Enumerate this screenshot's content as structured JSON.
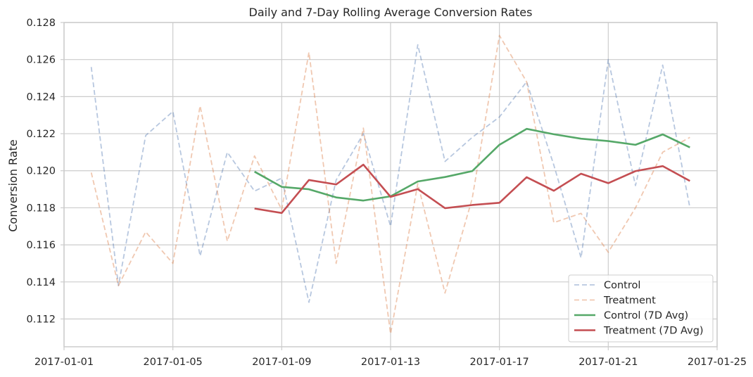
{
  "chart_data": {
    "type": "line",
    "title": "Daily and 7-Day Rolling Average Conversion Rates",
    "xlabel": "",
    "ylabel": "Conversion Rate",
    "grid": true,
    "legend_position": "lower-right",
    "xlim": [
      "2017-01-01",
      "2017-01-25"
    ],
    "ylim": [
      0.1105,
      0.128
    ],
    "x_tick_labels": [
      "2017-01-01",
      "2017-01-05",
      "2017-01-09",
      "2017-01-13",
      "2017-01-17",
      "2017-01-21",
      "2017-01-25"
    ],
    "y_tick_labels": [
      "0.112",
      "0.114",
      "0.116",
      "0.118",
      "0.120",
      "0.122",
      "0.124",
      "0.126",
      "0.128"
    ],
    "y_ticks": [
      0.112,
      0.114,
      0.116,
      0.118,
      0.12,
      0.122,
      0.124,
      0.126,
      0.128
    ],
    "series": [
      {
        "name": "Control",
        "style": "dashed",
        "color": "#4c72b0",
        "opacity": 0.4,
        "x": [
          "2017-01-02",
          "2017-01-03",
          "2017-01-04",
          "2017-01-05",
          "2017-01-06",
          "2017-01-07",
          "2017-01-08",
          "2017-01-09",
          "2017-01-10",
          "2017-01-11",
          "2017-01-12",
          "2017-01-13",
          "2017-01-14",
          "2017-01-15",
          "2017-01-16",
          "2017-01-17",
          "2017-01-18",
          "2017-01-19",
          "2017-01-20",
          "2017-01-21",
          "2017-01-22",
          "2017-01-23",
          "2017-01-24"
        ],
        "values": [
          0.1256,
          0.1138,
          0.1219,
          0.1232,
          0.1154,
          0.121,
          0.1189,
          0.1196,
          0.1129,
          0.1195,
          0.122,
          0.117,
          0.1268,
          0.1205,
          0.1218,
          0.1229,
          0.1248,
          0.1203,
          0.1153,
          0.126,
          0.1192,
          0.1257,
          0.118
        ]
      },
      {
        "name": "Treatment",
        "style": "dashed",
        "color": "#dd8452",
        "opacity": 0.45,
        "x": [
          "2017-01-02",
          "2017-01-03",
          "2017-01-04",
          "2017-01-05",
          "2017-01-06",
          "2017-01-07",
          "2017-01-08",
          "2017-01-09",
          "2017-01-10",
          "2017-01-11",
          "2017-01-12",
          "2017-01-13",
          "2017-01-14",
          "2017-01-15",
          "2017-01-16",
          "2017-01-17",
          "2017-01-18",
          "2017-01-19",
          "2017-01-20",
          "2017-01-21",
          "2017-01-22",
          "2017-01-23",
          "2017-01-24"
        ],
        "values": [
          0.1199,
          0.1138,
          0.1167,
          0.115,
          0.1235,
          0.1162,
          0.1208,
          0.1179,
          0.1264,
          0.115,
          0.1223,
          0.1112,
          0.1193,
          0.1134,
          0.1185,
          0.1273,
          0.1248,
          0.1172,
          0.1177,
          0.1156,
          0.118,
          0.121,
          0.1218
        ]
      },
      {
        "name": "Control (7D Avg)",
        "style": "solid",
        "color": "#55a868",
        "opacity": 1,
        "x": [
          "2017-01-08",
          "2017-01-09",
          "2017-01-10",
          "2017-01-11",
          "2017-01-12",
          "2017-01-13",
          "2017-01-14",
          "2017-01-15",
          "2017-01-16",
          "2017-01-17",
          "2017-01-18",
          "2017-01-19",
          "2017-01-20",
          "2017-01-21",
          "2017-01-22",
          "2017-01-23",
          "2017-01-24"
        ],
        "values": [
          0.11995,
          0.11913,
          0.119,
          0.11856,
          0.11839,
          0.11862,
          0.11942,
          0.11966,
          0.11998,
          0.1214,
          0.12226,
          0.12197,
          0.12173,
          0.1216,
          0.1214,
          0.12196,
          0.12126
        ]
      },
      {
        "name": "Treatment (7D Avg)",
        "style": "solid",
        "color": "#c44e52",
        "opacity": 1,
        "x": [
          "2017-01-08",
          "2017-01-09",
          "2017-01-10",
          "2017-01-11",
          "2017-01-12",
          "2017-01-13",
          "2017-01-14",
          "2017-01-15",
          "2017-01-16",
          "2017-01-17",
          "2017-01-18",
          "2017-01-19",
          "2017-01-20",
          "2017-01-21",
          "2017-01-22",
          "2017-01-23",
          "2017-01-24"
        ],
        "values": [
          0.11796,
          0.11772,
          0.1195,
          0.11926,
          0.12033,
          0.11859,
          0.11901,
          0.11798,
          0.11815,
          0.11827,
          0.11965,
          0.11892,
          0.11984,
          0.11933,
          0.11998,
          0.12025,
          0.11945
        ]
      }
    ]
  }
}
